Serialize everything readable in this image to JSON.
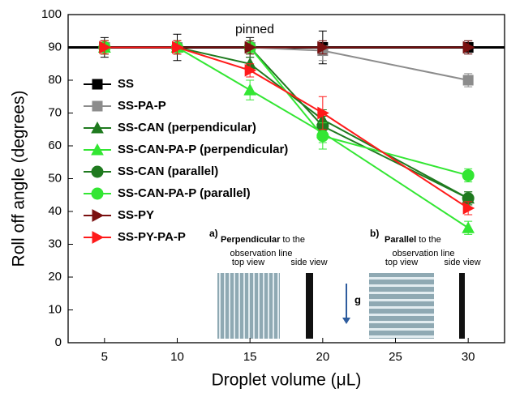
{
  "chart_data": {
    "type": "line",
    "xlabel": "Droplet volume (μL)",
    "ylabel": "Roll off angle (degrees)",
    "x": [
      5,
      10,
      15,
      20,
      30
    ],
    "xlim": [
      2.5,
      32.5
    ],
    "xticks": [
      5,
      10,
      15,
      20,
      25,
      30
    ],
    "ylim": [
      0,
      100
    ],
    "yticks": [
      0,
      10,
      20,
      30,
      40,
      50,
      60,
      70,
      80,
      90,
      100
    ],
    "hline": 90,
    "series": [
      {
        "name": "SS",
        "color": "#000000",
        "marker": "square",
        "values": [
          90,
          90,
          90,
          90,
          90
        ],
        "errors": [
          3,
          4,
          3,
          5,
          2
        ]
      },
      {
        "name": "SS-PA-P",
        "color": "#8c8c8c",
        "marker": "square",
        "values": [
          90,
          90,
          90,
          89,
          80
        ],
        "errors": [
          2,
          2,
          2,
          3,
          2
        ]
      },
      {
        "name": "SS-CAN (perpendicular)",
        "color": "#1f7a1f",
        "marker": "triangle",
        "values": [
          90,
          90,
          85,
          68,
          44
        ],
        "errors": [
          2,
          2,
          2,
          3,
          2
        ]
      },
      {
        "name": "SS-CAN-PA-P (perpendicular)",
        "color": "#33e633",
        "marker": "triangle",
        "values": [
          90,
          90,
          77,
          64,
          35
        ],
        "errors": [
          2,
          2,
          3,
          3,
          2
        ]
      },
      {
        "name": "SS-CAN (parallel)",
        "color": "#1f7a1f",
        "marker": "circle",
        "values": [
          90,
          90,
          90,
          66,
          44
        ],
        "errors": [
          2,
          2,
          2,
          3,
          2
        ]
      },
      {
        "name": "SS-CAN-PA-P (parallel)",
        "color": "#33e633",
        "marker": "circle",
        "values": [
          90,
          90,
          90,
          63,
          51
        ],
        "errors": [
          2,
          2,
          2,
          4,
          2
        ]
      },
      {
        "name": "SS-PY",
        "color": "#7a1010",
        "marker": "tri-right",
        "values": [
          90,
          90,
          90,
          90,
          90
        ],
        "errors": [
          2,
          2,
          2,
          2,
          2
        ]
      },
      {
        "name": "SS-PY-PA-P",
        "color": "#ff1a1a",
        "marker": "tri-right",
        "values": [
          90,
          90,
          83,
          70,
          41
        ],
        "errors": [
          2,
          2,
          2,
          5,
          2
        ]
      }
    ],
    "annotations": [
      "pinned",
      "a)",
      "Perpendicular",
      " to the",
      "observation line",
      "top view",
      "side view",
      "g",
      "b)",
      "Parallel",
      " to the",
      "observation line",
      "top view",
      "side view"
    ]
  }
}
